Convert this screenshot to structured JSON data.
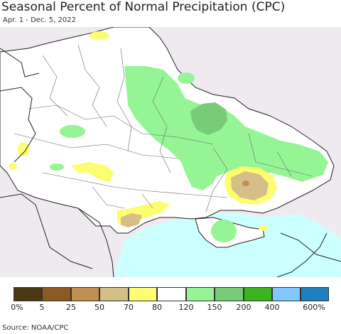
{
  "header": {
    "title": "Seasonal Percent of Normal Precipitation (CPC)",
    "date_range": "Apr. 1 - Dec. 5, 2022"
  },
  "legend": {
    "swatch_colors": [
      "#4c3914",
      "#8c5a20",
      "#c08e4d",
      "#d4bf88",
      "#fdfd70",
      "#ffffff",
      "#95f595",
      "#78cc78",
      "#3cb41e",
      "#80c8ff",
      "#1e7ebe"
    ],
    "tick_labels": [
      "0%",
      "5",
      "25",
      "50",
      "70",
      "80",
      "120",
      "150",
      "200",
      "400",
      "600%"
    ]
  },
  "map_colors": {
    "background": "#eeeaf0",
    "land": "#ffffff",
    "sea": "#ccffff",
    "wet_light": "#95f595",
    "wet_mid": "#78cc78",
    "dry_light": "#fdfd70",
    "dry_mid": "#d4bf88",
    "dry_strong": "#c08e4d",
    "border": "#222222"
  },
  "footer": {
    "source": "Source: NOAA/CPC"
  }
}
